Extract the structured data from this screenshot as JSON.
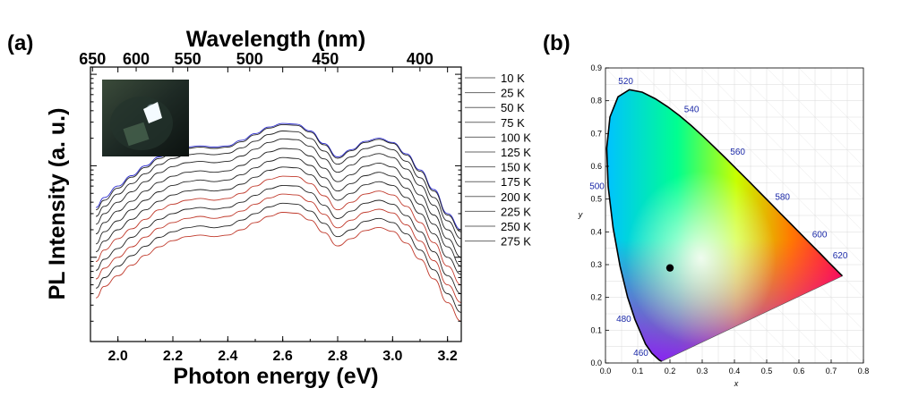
{
  "chart_data": [
    {
      "panel_label": "(a)",
      "type": "line",
      "y_scale": "log",
      "xlabel": "Photon energy (eV)",
      "xlabel_top": "Wavelength (nm)",
      "ylabel": "PL Intensity (a. u.)",
      "xlim": [
        1.9,
        3.25
      ],
      "x_ticks": [
        "2.0",
        "2.2",
        "2.4",
        "2.6",
        "2.8",
        "3.0",
        "3.2"
      ],
      "x_tick_values": [
        2.0,
        2.2,
        2.4,
        2.6,
        2.8,
        3.0,
        3.2
      ],
      "top_ticks": [
        "650",
        "600",
        "550",
        "500",
        "450",
        "400"
      ],
      "top_tick_wavelengths_nm": [
        650,
        600,
        550,
        500,
        450,
        400
      ],
      "inset": "photograph of luminescent sample",
      "legend_position": "right-outside",
      "x": [
        1.92,
        1.95,
        2.0,
        2.05,
        2.1,
        2.15,
        2.2,
        2.25,
        2.3,
        2.35,
        2.4,
        2.45,
        2.5,
        2.55,
        2.6,
        2.65,
        2.7,
        2.75,
        2.8,
        2.85,
        2.9,
        2.95,
        3.0,
        3.05,
        3.1,
        3.15,
        3.2,
        3.25
      ],
      "series": [
        {
          "name": "10 K",
          "color": "#2a2ad0",
          "values": [
            35,
            45,
            60,
            78,
            100,
            125,
            145,
            160,
            165,
            160,
            165,
            190,
            225,
            265,
            290,
            285,
            240,
            175,
            125,
            150,
            185,
            200,
            180,
            135,
            90,
            55,
            30,
            20
          ]
        },
        {
          "name": "25 K",
          "color": "#222222",
          "values": [
            33,
            42,
            57,
            75,
            96,
            120,
            140,
            155,
            160,
            155,
            160,
            183,
            218,
            258,
            282,
            277,
            233,
            170,
            121,
            146,
            180,
            195,
            176,
            131,
            87,
            53,
            29,
            19
          ]
        },
        {
          "name": "50 K",
          "color": "#222222",
          "values": [
            28,
            36,
            49,
            64,
            82,
            103,
            120,
            132,
            136,
            132,
            137,
            157,
            186,
            220,
            240,
            236,
            199,
            145,
            104,
            125,
            154,
            167,
            150,
            112,
            74,
            45,
            25,
            16
          ]
        },
        {
          "name": "75 K",
          "color": "#222222",
          "values": [
            23,
            30,
            40,
            52,
            67,
            84,
            98,
            108,
            112,
            108,
            112,
            128,
            152,
            180,
            197,
            193,
            163,
            119,
            85,
            102,
            126,
            136,
            123,
            92,
            61,
            37,
            20,
            13
          ]
        },
        {
          "name": "100 K",
          "color": "#222222",
          "values": [
            18,
            24,
            32,
            41,
            53,
            66,
            77,
            85,
            88,
            85,
            88,
            101,
            120,
            142,
            155,
            152,
            128,
            94,
            67,
            80,
            99,
            107,
            97,
            72,
            48,
            29,
            16,
            10
          ]
        },
        {
          "name": "125 K",
          "color": "#222222",
          "values": [
            14,
            19,
            25,
            33,
            42,
            52,
            61,
            67,
            70,
            67,
            70,
            80,
            95,
            112,
            123,
            120,
            101,
            74,
            53,
            64,
            78,
            85,
            77,
            57,
            38,
            23,
            13,
            8
          ]
        },
        {
          "name": "150 K",
          "color": "#222222",
          "values": [
            11.5,
            15,
            20,
            26,
            33,
            41,
            48,
            53,
            55,
            53,
            55,
            63,
            75,
            89,
            97,
            95,
            80,
            59,
            42,
            50,
            62,
            67,
            61,
            45,
            30,
            18,
            10,
            6.5
          ]
        },
        {
          "name": "175 K",
          "color": "#c0392b",
          "values": [
            9,
            12,
            16,
            20.5,
            26,
            33,
            38,
            42,
            44,
            42,
            44,
            50,
            60,
            71,
            77,
            76,
            64,
            47,
            33,
            40,
            49,
            53,
            48,
            36,
            24,
            14.5,
            8,
            5
          ]
        },
        {
          "name": "200 K",
          "color": "#222222",
          "values": [
            7.2,
            9.5,
            12.5,
            16.5,
            21,
            26,
            30,
            33.5,
            35,
            33.5,
            35,
            40,
            47.5,
            56,
            61,
            60,
            51,
            37,
            26.5,
            32,
            39,
            42,
            38,
            28.5,
            19,
            11.5,
            6.3,
            4
          ]
        },
        {
          "name": "225 K",
          "color": "#c0392b",
          "values": [
            5.8,
            7.6,
            10,
            13,
            16.6,
            20.8,
            24,
            26.6,
            28,
            26.6,
            28,
            32,
            38,
            44.5,
            49,
            48,
            40.5,
            29.5,
            21,
            25.5,
            31,
            33.5,
            30.5,
            22.6,
            15,
            9.2,
            5,
            3.2
          ]
        },
        {
          "name": "250 K",
          "color": "#222222",
          "values": [
            4.6,
            6,
            8,
            10.4,
            13.2,
            16.5,
            19,
            21,
            22,
            21,
            22,
            25.5,
            30,
            35.5,
            39,
            38,
            32,
            23.5,
            16.8,
            20,
            24.7,
            26.6,
            24,
            18,
            12,
            7.3,
            4,
            2.5
          ]
        },
        {
          "name": "275 K",
          "color": "#c0392b",
          "values": [
            3.6,
            4.8,
            6.3,
            8.2,
            10.5,
            13,
            15.2,
            16.8,
            17.5,
            16.8,
            17.5,
            20,
            24,
            28,
            31,
            30.3,
            25.5,
            18.6,
            13.3,
            16,
            19.6,
            21.2,
            19.2,
            14.3,
            9.5,
            5.8,
            3.2,
            2
          ]
        }
      ]
    },
    {
      "panel_label": "(b)",
      "type": "scatter",
      "xlabel": "x",
      "ylabel": "y",
      "xlim": [
        0.0,
        0.8
      ],
      "ylim": [
        0.0,
        0.9
      ],
      "x_ticks": [
        "0.0",
        "0.1",
        "0.2",
        "0.3",
        "0.4",
        "0.5",
        "0.6",
        "0.7",
        "0.8"
      ],
      "y_ticks": [
        "0.0",
        "0.1",
        "0.2",
        "0.3",
        "0.4",
        "0.5",
        "0.6",
        "0.7",
        "0.8",
        "0.9"
      ],
      "grid": true,
      "wavelength_labels": [
        {
          "label": "460",
          "x": 0.144,
          "y": 0.03
        },
        {
          "label": "480",
          "x": 0.091,
          "y": 0.133
        },
        {
          "label": "500",
          "x": 0.008,
          "y": 0.538
        },
        {
          "label": "520",
          "x": 0.074,
          "y": 0.834
        },
        {
          "label": "540",
          "x": 0.23,
          "y": 0.754
        },
        {
          "label": "560",
          "x": 0.373,
          "y": 0.624
        },
        {
          "label": "580",
          "x": 0.512,
          "y": 0.487
        },
        {
          "label": "600",
          "x": 0.627,
          "y": 0.372
        },
        {
          "label": "620",
          "x": 0.691,
          "y": 0.308
        }
      ],
      "locus": [
        [
          0.1741,
          0.005
        ],
        [
          0.1666,
          0.0089
        ],
        [
          0.144,
          0.0297
        ],
        [
          0.1241,
          0.0578
        ],
        [
          0.0913,
          0.1327
        ],
        [
          0.0687,
          0.2007
        ],
        [
          0.0454,
          0.295
        ],
        [
          0.0235,
          0.4127
        ],
        [
          0.0082,
          0.5384
        ],
        [
          0.0039,
          0.6548
        ],
        [
          0.0139,
          0.7502
        ],
        [
          0.0389,
          0.812
        ],
        [
          0.0743,
          0.8338
        ],
        [
          0.1142,
          0.8262
        ],
        [
          0.1547,
          0.8059
        ],
        [
          0.1929,
          0.7816
        ],
        [
          0.2296,
          0.7543
        ],
        [
          0.2658,
          0.7243
        ],
        [
          0.3016,
          0.6923
        ],
        [
          0.3373,
          0.6589
        ],
        [
          0.3731,
          0.6245
        ],
        [
          0.4087,
          0.5896
        ],
        [
          0.4441,
          0.5547
        ],
        [
          0.4788,
          0.5202
        ],
        [
          0.5125,
          0.4866
        ],
        [
          0.5448,
          0.4544
        ],
        [
          0.5752,
          0.4242
        ],
        [
          0.6029,
          0.3965
        ],
        [
          0.627,
          0.3725
        ],
        [
          0.6482,
          0.3514
        ],
        [
          0.6658,
          0.334
        ],
        [
          0.6915,
          0.3083
        ],
        [
          0.7079,
          0.292
        ],
        [
          0.719,
          0.2809
        ],
        [
          0.7347,
          0.2653
        ]
      ],
      "points": [
        {
          "x": 0.2,
          "y": 0.29
        }
      ]
    }
  ]
}
